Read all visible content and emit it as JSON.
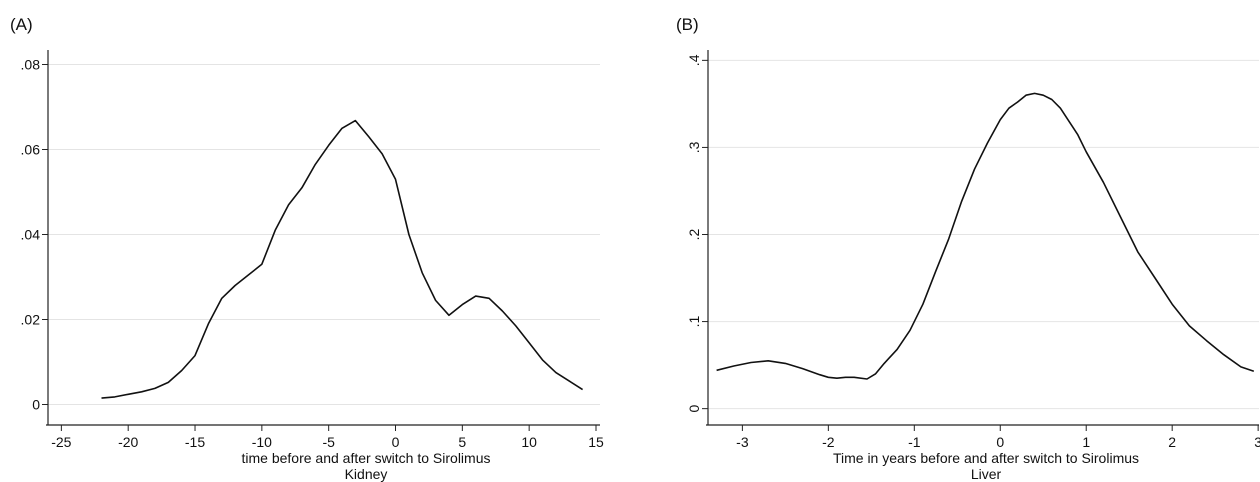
{
  "chart_data": [
    {
      "type": "line",
      "panel_label": "(A)",
      "xlabel": "time before and after switch to Sirolimus",
      "subtitle": "Kidney",
      "ylabel": "",
      "xlim": [
        -26,
        15.3
      ],
      "ylim": [
        -0.002,
        0.082
      ],
      "xticks": [
        -25,
        -20,
        -15,
        -10,
        -5,
        0,
        5,
        10,
        15
      ],
      "xtick_labels": [
        "-25",
        "-20",
        "-15",
        "-10",
        "-5",
        "0",
        "5",
        "10",
        "15"
      ],
      "yticks": [
        0,
        0.02,
        0.04,
        0.06,
        0.08
      ],
      "ytick_labels": [
        "0",
        ".02",
        ".04",
        ".06",
        ".08"
      ],
      "grid": true,
      "series": [
        {
          "x": [
            -22,
            -21,
            -20,
            -19,
            -18,
            -17,
            -16,
            -15,
            -14,
            -13,
            -12,
            -11,
            -10,
            -9,
            -8,
            -7,
            -6,
            -5,
            -4,
            -3,
            -2,
            -1,
            0,
            1,
            2,
            3,
            4,
            5,
            6,
            7,
            8,
            9,
            10,
            11,
            12,
            13,
            14
          ],
          "y": [
            0.0015,
            0.0018,
            0.0024,
            0.003,
            0.0038,
            0.0052,
            0.008,
            0.0115,
            0.019,
            0.025,
            0.028,
            0.0305,
            0.033,
            0.041,
            0.047,
            0.051,
            0.0565,
            0.061,
            0.065,
            0.0668,
            0.063,
            0.059,
            0.053,
            0.04,
            0.031,
            0.0245,
            0.021,
            0.0235,
            0.0255,
            0.025,
            0.022,
            0.0185,
            0.0145,
            0.0105,
            0.0075,
            0.0055,
            0.0035
          ]
        }
      ]
    },
    {
      "type": "line",
      "panel_label": "(B)",
      "xlabel": "Time in years before and after switch to Sirolimus",
      "subtitle": "Liver",
      "ylabel": "",
      "xlim": [
        -3.4,
        3.01
      ],
      "ylim": [
        -0.005,
        0.405
      ],
      "xticks": [
        -3,
        -2,
        -1,
        0,
        1,
        2,
        3
      ],
      "xtick_labels": [
        "-3",
        "-2",
        "-1",
        "0",
        "1",
        "2",
        "3"
      ],
      "yticks": [
        0,
        0.1,
        0.2,
        0.3,
        0.4
      ],
      "ytick_labels": [
        "0",
        ".1",
        ".2",
        ".3",
        ".4"
      ],
      "ytick_rotation": -90,
      "grid": true,
      "series": [
        {
          "x": [
            -3.3,
            -3.1,
            -2.9,
            -2.7,
            -2.5,
            -2.3,
            -2.1,
            -2.0,
            -1.9,
            -1.8,
            -1.7,
            -1.55,
            -1.45,
            -1.35,
            -1.2,
            -1.05,
            -0.9,
            -0.75,
            -0.6,
            -0.45,
            -0.3,
            -0.15,
            0.0,
            0.1,
            0.2,
            0.3,
            0.4,
            0.5,
            0.6,
            0.7,
            0.8,
            0.9,
            1.0,
            1.2,
            1.4,
            1.6,
            1.8,
            2.0,
            2.2,
            2.4,
            2.6,
            2.8,
            2.95
          ],
          "y": [
            0.044,
            0.049,
            0.053,
            0.055,
            0.052,
            0.046,
            0.039,
            0.036,
            0.035,
            0.036,
            0.036,
            0.034,
            0.04,
            0.052,
            0.068,
            0.09,
            0.12,
            0.158,
            0.195,
            0.238,
            0.275,
            0.305,
            0.332,
            0.345,
            0.352,
            0.36,
            0.362,
            0.36,
            0.355,
            0.345,
            0.33,
            0.315,
            0.295,
            0.26,
            0.22,
            0.18,
            0.15,
            0.12,
            0.095,
            0.078,
            0.062,
            0.048,
            0.043
          ]
        }
      ]
    }
  ]
}
